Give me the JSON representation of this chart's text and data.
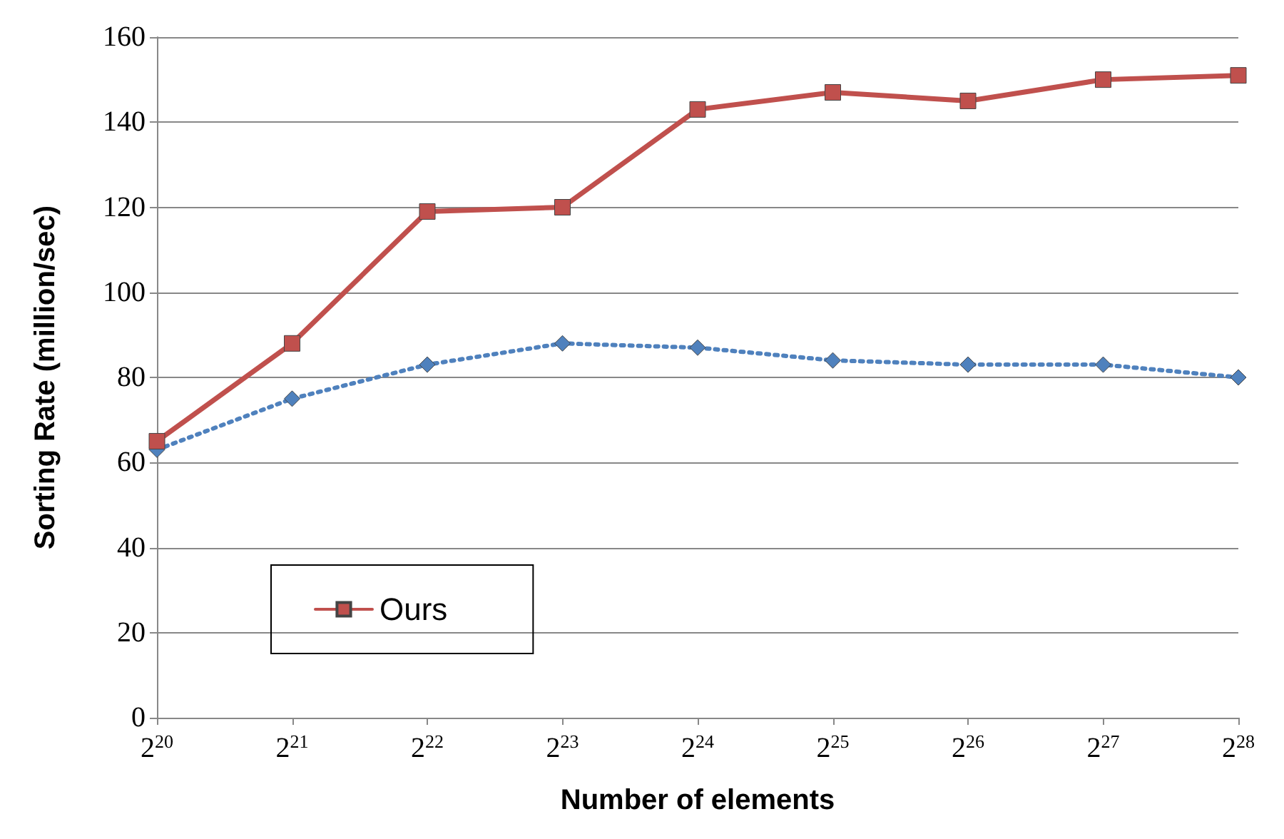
{
  "chart_data": {
    "type": "line",
    "xlabel": "Number of elements",
    "ylabel": "Sorting Rate (million/sec)",
    "categories": [
      "2$^{20}$",
      "2$^{21}$",
      "2$^{22}$",
      "2$^{23}$",
      "2$^{24}$",
      "2$^{25}$",
      "2$^{26}$",
      "2$^{27}$",
      "2$^{28}$"
    ],
    "series": [
      {
        "color": "#4f81bd",
        "marker": "diamond",
        "line_style": "dotted",
        "values": [
          63,
          75,
          83,
          88,
          87,
          84,
          83,
          83,
          80
        ]
      },
      {
        "name": "Ours",
        "color": "#c0504d",
        "marker": "square",
        "line_style": "solid",
        "values": [
          65,
          88,
          119,
          120,
          143,
          147,
          145,
          150,
          151
        ]
      }
    ],
    "ylim": [
      0,
      160
    ],
    "yticks": [
      0,
      20,
      40,
      60,
      80,
      100,
      120,
      140,
      160
    ],
    "grid": "y",
    "legend": "bottom left"
  }
}
